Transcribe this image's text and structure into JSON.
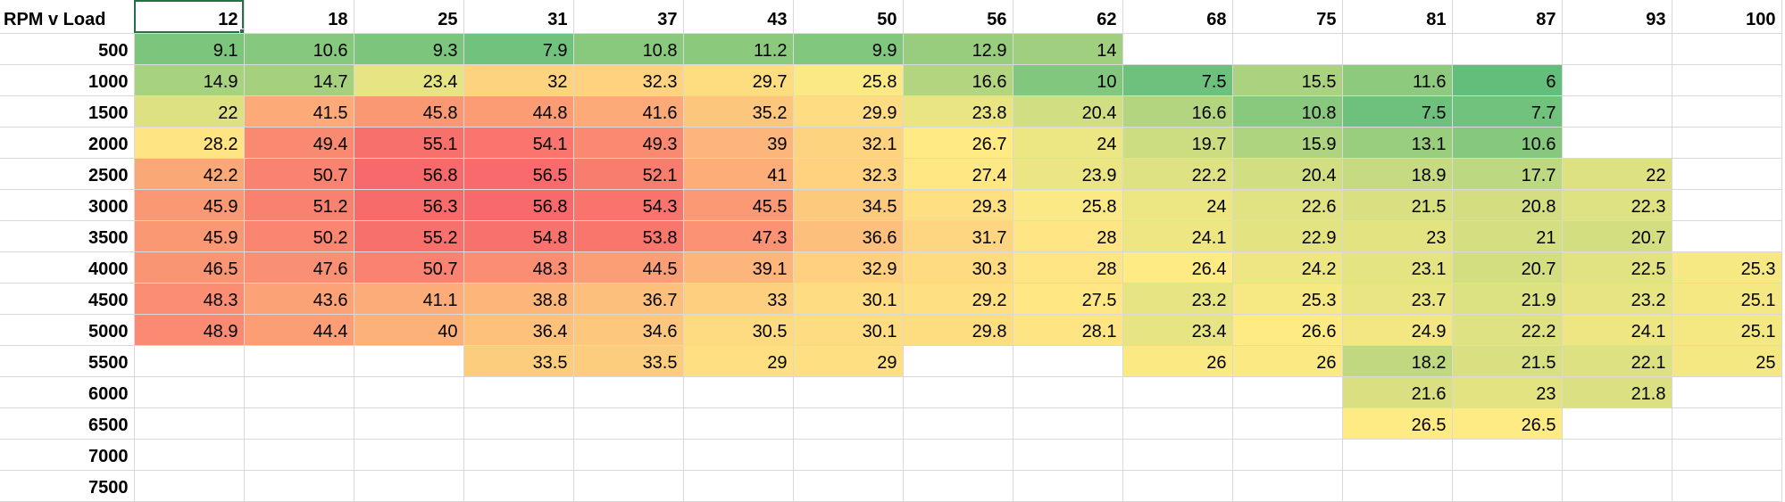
{
  "sheet": {
    "corner_label": "RPM v Load",
    "columns": [
      "12",
      "18",
      "25",
      "31",
      "37",
      "43",
      "50",
      "56",
      "62",
      "68",
      "75",
      "81",
      "87",
      "93",
      "100"
    ],
    "rows": [
      {
        "rpm": "500",
        "values": [
          "9.1",
          "10.6",
          "9.3",
          "7.9",
          "10.8",
          "11.2",
          "9.9",
          "12.9",
          "14",
          "",
          "",
          "",
          "",
          "",
          ""
        ]
      },
      {
        "rpm": "1000",
        "values": [
          "14.9",
          "14.7",
          "23.4",
          "32",
          "32.3",
          "29.7",
          "25.8",
          "16.6",
          "10",
          "7.5",
          "15.5",
          "11.6",
          "6",
          "",
          ""
        ]
      },
      {
        "rpm": "1500",
        "values": [
          "22",
          "41.5",
          "45.8",
          "44.8",
          "41.6",
          "35.2",
          "29.9",
          "23.8",
          "20.4",
          "16.6",
          "10.8",
          "7.5",
          "7.7",
          "",
          ""
        ]
      },
      {
        "rpm": "2000",
        "values": [
          "28.2",
          "49.4",
          "55.1",
          "54.1",
          "49.3",
          "39",
          "32.1",
          "26.7",
          "24",
          "19.7",
          "15.9",
          "13.1",
          "10.6",
          "",
          ""
        ]
      },
      {
        "rpm": "2500",
        "values": [
          "42.2",
          "50.7",
          "56.8",
          "56.5",
          "52.1",
          "41",
          "32.3",
          "27.4",
          "23.9",
          "22.2",
          "20.4",
          "18.9",
          "17.7",
          "22",
          ""
        ]
      },
      {
        "rpm": "3000",
        "values": [
          "45.9",
          "51.2",
          "56.3",
          "56.8",
          "54.3",
          "45.5",
          "34.5",
          "29.3",
          "25.8",
          "24",
          "22.6",
          "21.5",
          "20.8",
          "22.3",
          ""
        ]
      },
      {
        "rpm": "3500",
        "values": [
          "45.9",
          "50.2",
          "55.2",
          "54.8",
          "53.8",
          "47.3",
          "36.6",
          "31.7",
          "28",
          "24.1",
          "22.9",
          "23",
          "21",
          "20.7",
          ""
        ]
      },
      {
        "rpm": "4000",
        "values": [
          "46.5",
          "47.6",
          "50.7",
          "48.3",
          "44.5",
          "39.1",
          "32.9",
          "30.3",
          "28",
          "26.4",
          "24.2",
          "23.1",
          "20.7",
          "22.5",
          "25.3"
        ]
      },
      {
        "rpm": "4500",
        "values": [
          "48.3",
          "43.6",
          "41.1",
          "38.8",
          "36.7",
          "33",
          "30.1",
          "29.2",
          "27.5",
          "23.2",
          "25.3",
          "23.7",
          "21.9",
          "23.2",
          "25.1"
        ]
      },
      {
        "rpm": "5000",
        "values": [
          "48.9",
          "44.4",
          "40",
          "36.4",
          "34.6",
          "30.5",
          "30.1",
          "29.8",
          "28.1",
          "23.4",
          "26.6",
          "24.9",
          "22.2",
          "24.1",
          "25.1"
        ]
      },
      {
        "rpm": "5500",
        "values": [
          "",
          "",
          "",
          "33.5",
          "33.5",
          "29",
          "29",
          "",
          "",
          "26",
          "26",
          "18.2",
          "21.5",
          "22.1",
          "25"
        ]
      },
      {
        "rpm": "6000",
        "values": [
          "",
          "",
          "",
          "",
          "",
          "",
          "",
          "",
          "",
          "",
          "",
          "21.6",
          "23",
          "21.8",
          ""
        ]
      },
      {
        "rpm": "6500",
        "values": [
          "",
          "",
          "",
          "",
          "",
          "",
          "",
          "",
          "",
          "",
          "",
          "26.5",
          "26.5",
          "",
          ""
        ]
      },
      {
        "rpm": "7000",
        "values": [
          "",
          "",
          "",
          "",
          "",
          "",
          "",
          "",
          "",
          "",
          "",
          "",
          "",
          "",
          ""
        ]
      },
      {
        "rpm": "7500",
        "values": [
          "",
          "",
          "",
          "",
          "",
          "",
          "",
          "",
          "",
          "",
          "",
          "",
          "",
          "",
          ""
        ]
      }
    ],
    "color_scale": {
      "min": 6,
      "mid": 26.5,
      "max": 56.8,
      "low_color": "#63be7b",
      "mid_color": "#ffeb84",
      "high_color": "#f8696b"
    },
    "selected_cell": "12"
  }
}
